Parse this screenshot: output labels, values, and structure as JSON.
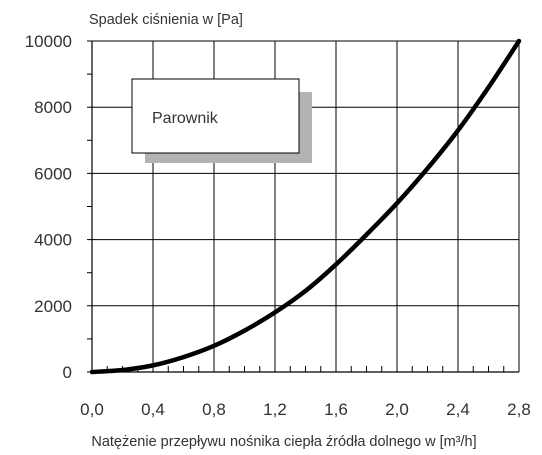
{
  "chart_data": {
    "type": "line",
    "ylabel": "Spadek ciśnienia w [Pa]",
    "xlabel": "Natężenie przepływu nośnika ciepła źródła dolnego w [m³/h]",
    "xlim": [
      0,
      2.8
    ],
    "ylim": [
      0,
      10000
    ],
    "x_ticks": [
      "0,0",
      "0,4",
      "0,8",
      "1,2",
      "1,6",
      "2,0",
      "2,4",
      "2,8"
    ],
    "x_tick_values": [
      0,
      0.4,
      0.8,
      1.2,
      1.6,
      2.0,
      2.4,
      2.8
    ],
    "y_ticks": [
      "0",
      "2000",
      "4000",
      "6000",
      "8000",
      "10000"
    ],
    "y_tick_values": [
      0,
      2000,
      4000,
      6000,
      8000,
      10000
    ],
    "grid": true,
    "legend": {
      "label": "Parownik",
      "placement": "top-left"
    },
    "series": [
      {
        "name": "Parownik",
        "color": "#000000",
        "x": [
          0,
          0.2,
          0.4,
          0.6,
          0.8,
          1.0,
          1.2,
          1.4,
          1.6,
          1.8,
          2.0,
          2.2,
          2.4,
          2.6,
          2.8
        ],
        "y": [
          0,
          60,
          200,
          450,
          790,
          1250,
          1800,
          2450,
          3250,
          4150,
          5100,
          6150,
          7300,
          8600,
          10000
        ]
      }
    ]
  }
}
